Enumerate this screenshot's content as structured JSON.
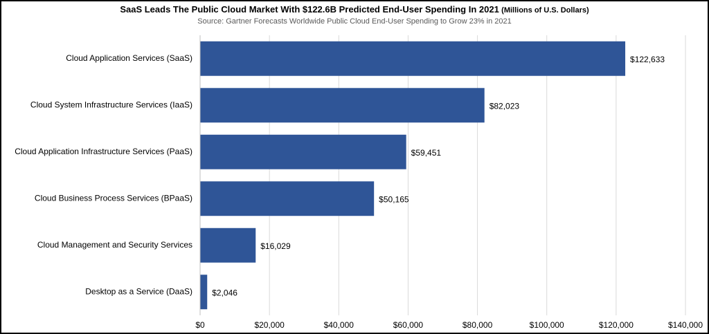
{
  "chart_data": {
    "type": "bar",
    "orientation": "horizontal",
    "title": "SaaS Leads The Public Cloud Market With $122.6B Predicted End-User Spending In 2021",
    "title_note": "(Millions of U.S. Dollars)",
    "subtitle": "Source: Gartner Forecasts Worldwide Public Cloud End-User Spending to Grow 23% in 2021",
    "categories": [
      "Cloud Application Services (SaaS)",
      "Cloud System Infrastructure Services (IaaS)",
      "Cloud Application Infrastructure Services (PaaS)",
      "Cloud Business Process Services (BPaaS)",
      "Cloud Management and Security Services",
      "Desktop as a Service (DaaS)"
    ],
    "values": [
      122633,
      82023,
      59451,
      50165,
      16029,
      2046
    ],
    "value_labels": [
      "$122,633",
      "$82,023",
      "$59,451",
      "$50,165",
      "$16,029",
      "$2,046"
    ],
    "color": "#2f5597",
    "xlim": [
      0,
      140000
    ],
    "xticks": [
      {
        "value": 0,
        "label": "$0"
      },
      {
        "value": 20000,
        "label": "$20,000"
      },
      {
        "value": 40000,
        "label": "$40,000"
      },
      {
        "value": 60000,
        "label": "$60,000"
      },
      {
        "value": 80000,
        "label": "$80,000"
      },
      {
        "value": 100000,
        "label": "$100,000"
      },
      {
        "value": 120000,
        "label": "$120,000"
      },
      {
        "value": 140000,
        "label": "$140,000"
      }
    ],
    "grid": true
  }
}
